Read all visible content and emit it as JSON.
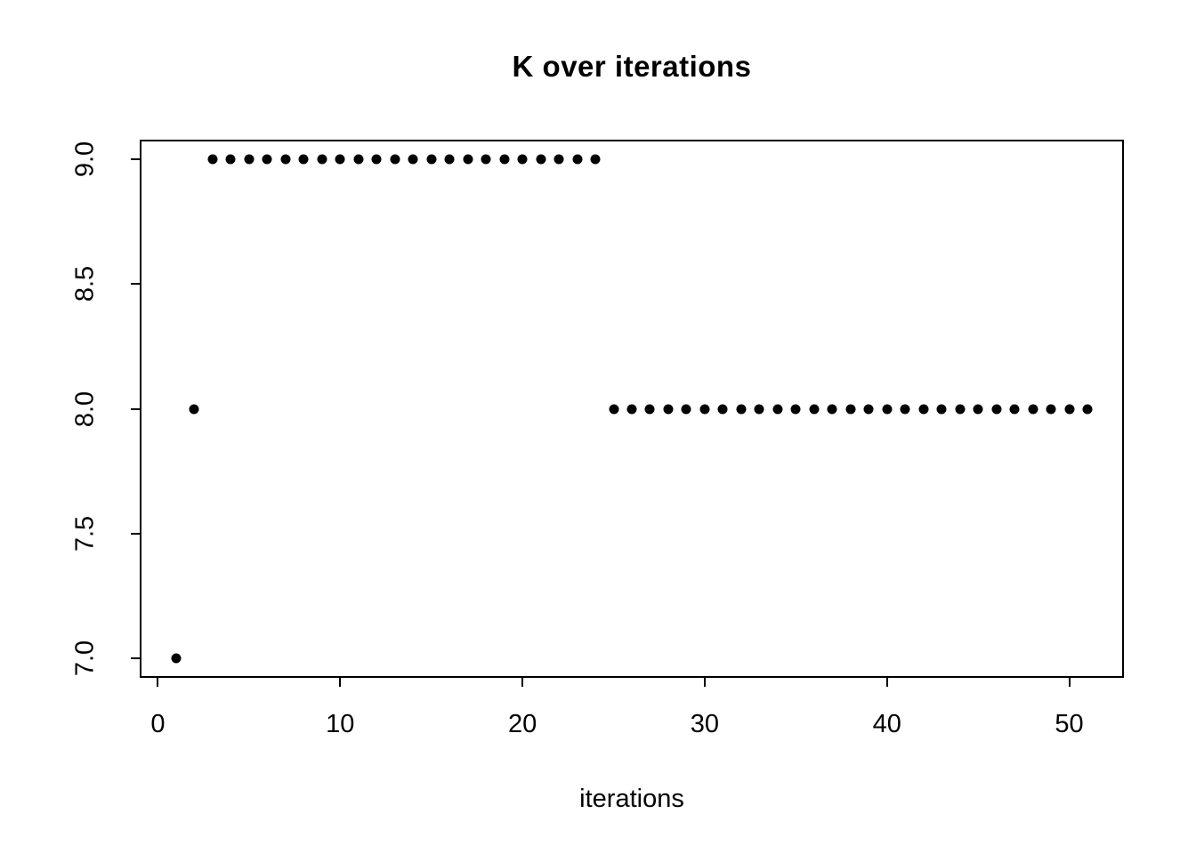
{
  "chart_data": {
    "type": "scatter",
    "title": "K over iterations",
    "xlabel": "iterations",
    "ylabel": "",
    "x": [
      1,
      2,
      3,
      4,
      5,
      6,
      7,
      8,
      9,
      10,
      11,
      12,
      13,
      14,
      15,
      16,
      17,
      18,
      19,
      20,
      21,
      22,
      23,
      24,
      25,
      26,
      27,
      28,
      29,
      30,
      31,
      32,
      33,
      34,
      35,
      36,
      37,
      38,
      39,
      40,
      41,
      42,
      43,
      44,
      45,
      46,
      47,
      48,
      49,
      50,
      51
    ],
    "y": [
      7,
      8,
      9,
      9,
      9,
      9,
      9,
      9,
      9,
      9,
      9,
      9,
      9,
      9,
      9,
      9,
      9,
      9,
      9,
      9,
      9,
      9,
      9,
      9,
      8,
      8,
      8,
      8,
      8,
      8,
      8,
      8,
      8,
      8,
      8,
      8,
      8,
      8,
      8,
      8,
      8,
      8,
      8,
      8,
      8,
      8,
      8,
      8,
      8,
      8,
      8
    ],
    "xlim": [
      -1,
      53
    ],
    "ylim": [
      6.92,
      9.08
    ],
    "x_ticks": [
      0,
      10,
      20,
      30,
      40,
      50
    ],
    "x_tick_labels": [
      "0",
      "10",
      "20",
      "30",
      "40",
      "50"
    ],
    "y_ticks": [
      7.0,
      7.5,
      8.0,
      8.5,
      9.0
    ],
    "y_tick_labels": [
      "7.0",
      "7.5",
      "8.0",
      "8.5",
      "9.0"
    ],
    "grid": false,
    "legend": null,
    "marker": "filled-circle",
    "point_color": "#000000",
    "axis_color": "#000000",
    "background_color": "#ffffff"
  }
}
